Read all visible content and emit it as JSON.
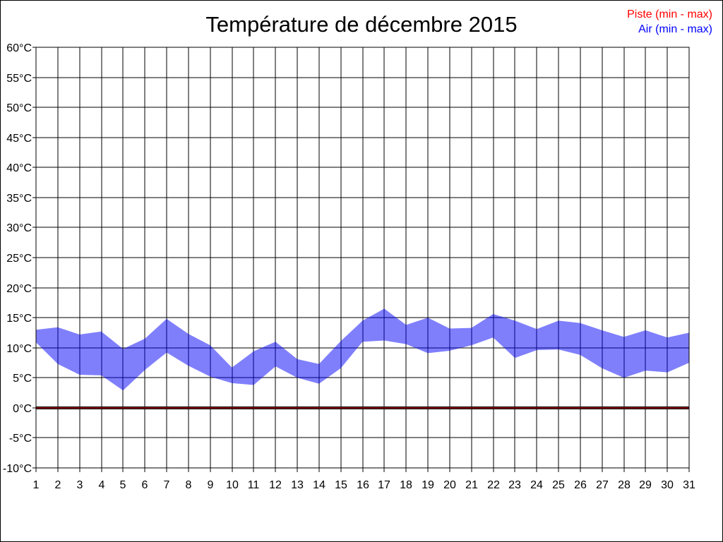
{
  "title": "Température de décembre 2015",
  "legend": [
    {
      "label": "Piste (min - max)",
      "color": "#ff0000"
    },
    {
      "label": "Air (min - max)",
      "color": "#0000ff"
    }
  ],
  "colors": {
    "grid": "#000000",
    "axis_text": "#000000",
    "air_band_fill": "#0000fa",
    "air_band_opacity": 0.5,
    "piste_line": "#8b0000",
    "piste_outline": "#000000",
    "page_border": "#000000"
  },
  "chart_data": {
    "type": "area",
    "title": "Température de décembre 2015",
    "xlabel": "",
    "ylabel": "",
    "y_unit": "°C",
    "ylim": [
      -10,
      60
    ],
    "y_tick_step": 5,
    "grid": true,
    "legend_position": "top-right",
    "x": [
      1,
      2,
      3,
      4,
      5,
      6,
      7,
      8,
      9,
      10,
      11,
      12,
      13,
      14,
      15,
      16,
      17,
      18,
      19,
      20,
      21,
      22,
      23,
      24,
      25,
      26,
      27,
      28,
      29,
      30,
      31
    ],
    "y_tick_labels": [
      "60°C",
      "55°C",
      "50°C",
      "45°C",
      "40°C",
      "35°C",
      "30°C",
      "25°C",
      "20°C",
      "15°C",
      "10°C",
      "5°C",
      "0°C",
      "-5°C",
      "-10°C"
    ],
    "series": [
      {
        "name": "Piste (min - max)",
        "type": "band",
        "color": "#8b0000",
        "min": [
          0,
          0,
          0,
          0,
          0,
          0,
          0,
          0,
          0,
          0,
          0,
          0,
          0,
          0,
          0,
          0,
          0,
          0,
          0,
          0,
          0,
          0,
          0,
          0,
          0,
          0,
          0,
          0,
          0,
          0,
          0
        ],
        "max": [
          0,
          0,
          0,
          0,
          0,
          0,
          0,
          0,
          0,
          0,
          0,
          0,
          0,
          0,
          0,
          0,
          0,
          0,
          0,
          0,
          0,
          0,
          0,
          0,
          0,
          0,
          0,
          0,
          0,
          0,
          0
        ]
      },
      {
        "name": "Air (min - max)",
        "type": "band",
        "color": "#0000fa",
        "min": [
          10.9,
          7.3,
          5.5,
          5.4,
          2.9,
          6.3,
          9.2,
          7.0,
          5.2,
          4.1,
          3.8,
          6.9,
          5.0,
          4.0,
          6.6,
          11.0,
          11.2,
          10.6,
          9.1,
          9.5,
          10.4,
          11.7,
          8.3,
          9.6,
          9.7,
          8.8,
          6.6,
          5.0,
          6.2,
          5.9,
          7.5
        ],
        "max": [
          13.0,
          13.4,
          12.2,
          12.7,
          9.8,
          11.5,
          14.8,
          12.3,
          10.4,
          6.7,
          9.4,
          11.0,
          8.1,
          7.3,
          11.1,
          14.5,
          16.5,
          13.8,
          15.0,
          13.2,
          13.3,
          15.6,
          14.5,
          13.1,
          14.5,
          14.1,
          12.9,
          11.8,
          12.9,
          11.7,
          12.5
        ]
      }
    ]
  }
}
